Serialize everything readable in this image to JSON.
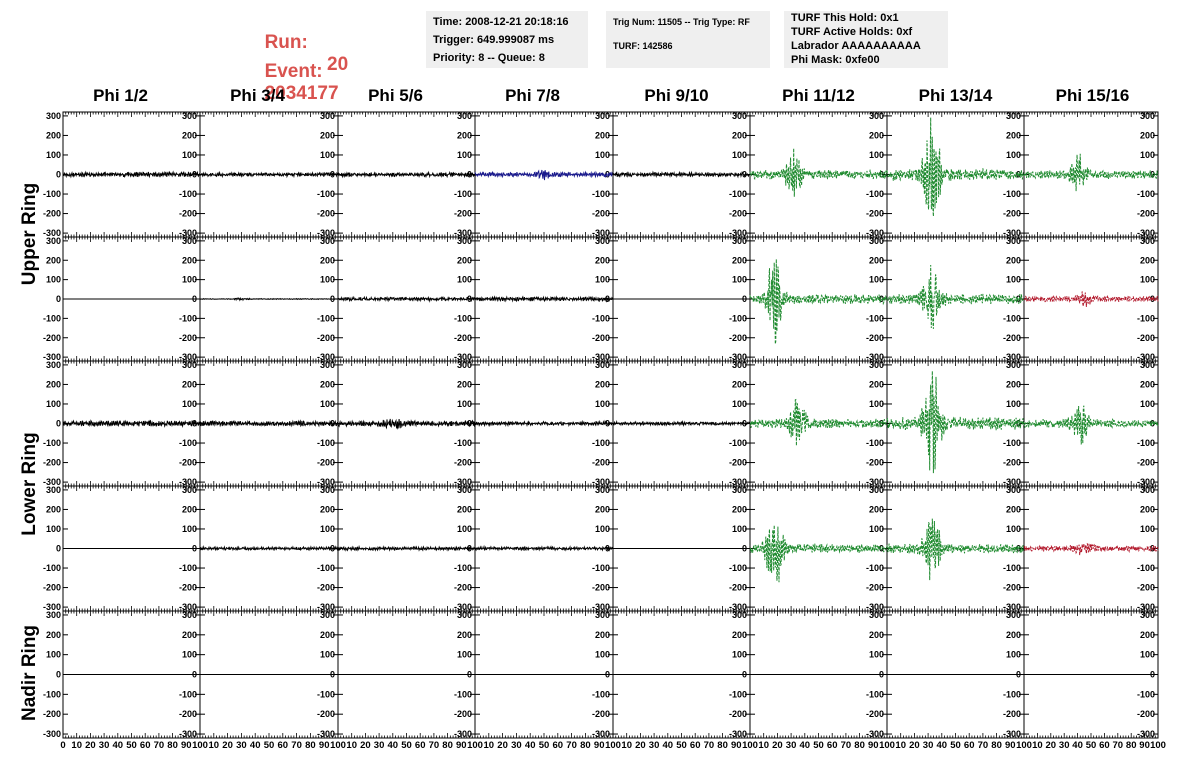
{
  "header": {
    "run_label": "Run:",
    "run_value": "20",
    "event_label": "Event:",
    "event_value": "2034177",
    "time": "Time: 2008-12-21 20:18:16",
    "trigger": "Trigger: 649.999087 ms",
    "priority": "Priority: 8 -- Queue: 8",
    "trig_num": "Trig Num: 11505 -- Trig Type: RF",
    "turf": "TURF: 142586",
    "turf_this_hold": "TURF This Hold: 0x1",
    "turf_active_holds": "TURF Active Holds: 0xf",
    "labrador": "Labrador AAAAAAAAAA",
    "phi_mask": "Phi Mask: 0xfe00"
  },
  "columns": [
    "Phi 1/2",
    "Phi 3/4",
    "Phi 5/6",
    "Phi 7/8",
    "Phi 9/10",
    "Phi 11/12",
    "Phi 13/14",
    "Phi 15/16"
  ],
  "rings": [
    "Upper Ring",
    "Lower Ring",
    "Nadir Ring"
  ],
  "colors": {
    "normal": "#000000",
    "blue": "#1a1a8c",
    "green": "#1e8a2e",
    "red": "#b2182b"
  },
  "chart_data": {
    "type": "line",
    "xlim": [
      0,
      100
    ],
    "ylim": [
      -320,
      320
    ],
    "yticks": [
      -300,
      -200,
      -100,
      0,
      100,
      200,
      300
    ],
    "xticks": [
      0,
      10,
      20,
      30,
      40,
      50,
      60,
      70,
      80,
      90,
      100
    ],
    "xtick_labels": [
      "0",
      "10",
      "20",
      "30",
      "40",
      "50",
      "60",
      "70",
      "80",
      "90",
      "100"
    ],
    "row_rings": [
      "Upper Ring",
      "Upper Ring",
      "Lower Ring",
      "Lower Ring",
      "Nadir Ring"
    ],
    "panels": [
      [
        {
          "color": "normal",
          "amp": 12,
          "burst": 0,
          "center": 0,
          "dashed": false
        },
        {
          "color": "normal",
          "amp": 9,
          "burst": 0,
          "center": 0,
          "dashed": false
        },
        {
          "color": "normal",
          "amp": 10,
          "burst": 0,
          "center": 0,
          "dashed": false
        },
        {
          "color": "blue",
          "amp": 11,
          "burst": 18,
          "center": 50,
          "dashed": false
        },
        {
          "color": "normal",
          "amp": 10,
          "burst": 0,
          "center": 0,
          "dashed": false
        },
        {
          "color": "green",
          "amp": 22,
          "burst": 110,
          "center": 32,
          "dashed": true
        },
        {
          "color": "green",
          "amp": 28,
          "burst": 290,
          "center": 33,
          "dashed": true
        },
        {
          "color": "green",
          "amp": 20,
          "burst": 95,
          "center": 40,
          "dashed": true
        }
      ],
      [
        {
          "color": "normal",
          "amp": 0,
          "burst": 0,
          "center": 0,
          "dashed": false
        },
        {
          "color": "normal",
          "amp": 2,
          "burst": 4,
          "center": 30,
          "dashed": false
        },
        {
          "color": "normal",
          "amp": 9,
          "burst": 0,
          "center": 0,
          "dashed": false
        },
        {
          "color": "normal",
          "amp": 10,
          "burst": 0,
          "center": 0,
          "dashed": false
        },
        {
          "color": "normal",
          "amp": 0,
          "burst": 0,
          "center": 0,
          "dashed": false
        },
        {
          "color": "green",
          "amp": 22,
          "burst": 190,
          "center": 18,
          "dashed": true
        },
        {
          "color": "green",
          "amp": 24,
          "burst": 155,
          "center": 33,
          "dashed": true
        },
        {
          "color": "red",
          "amp": 14,
          "burst": 25,
          "center": 45,
          "dashed": true
        }
      ],
      [
        {
          "color": "normal",
          "amp": 13,
          "burst": 0,
          "center": 0,
          "dashed": false
        },
        {
          "color": "normal",
          "amp": 12,
          "burst": 0,
          "center": 0,
          "dashed": false
        },
        {
          "color": "normal",
          "amp": 13,
          "burst": 20,
          "center": 40,
          "dashed": false
        },
        {
          "color": "normal",
          "amp": 9,
          "burst": 0,
          "center": 0,
          "dashed": false
        },
        {
          "color": "normal",
          "amp": 8,
          "burst": 0,
          "center": 0,
          "dashed": false
        },
        {
          "color": "green",
          "amp": 22,
          "burst": 100,
          "center": 35,
          "dashed": true
        },
        {
          "color": "green",
          "amp": 30,
          "burst": 280,
          "center": 33,
          "dashed": true
        },
        {
          "color": "green",
          "amp": 20,
          "burst": 90,
          "center": 42,
          "dashed": true
        }
      ],
      [
        {
          "color": "normal",
          "amp": 0,
          "burst": 0,
          "center": 0,
          "dashed": false
        },
        {
          "color": "normal",
          "amp": 7,
          "burst": 0,
          "center": 0,
          "dashed": false
        },
        {
          "color": "normal",
          "amp": 8,
          "burst": 0,
          "center": 0,
          "dashed": false
        },
        {
          "color": "normal",
          "amp": 8,
          "burst": 0,
          "center": 0,
          "dashed": false
        },
        {
          "color": "normal",
          "amp": 0,
          "burst": 0,
          "center": 0,
          "dashed": false
        },
        {
          "color": "green",
          "amp": 22,
          "burst": 190,
          "center": 18,
          "dashed": true
        },
        {
          "color": "green",
          "amp": 22,
          "burst": 150,
          "center": 33,
          "dashed": true
        },
        {
          "color": "red",
          "amp": 14,
          "burst": 25,
          "center": 45,
          "dashed": true
        }
      ],
      [
        {
          "color": "normal",
          "amp": 0,
          "burst": 0,
          "center": 0,
          "dashed": false
        },
        {
          "color": "normal",
          "amp": 0,
          "burst": 0,
          "center": 0,
          "dashed": false
        },
        {
          "color": "normal",
          "amp": 0,
          "burst": 0,
          "center": 0,
          "dashed": false
        },
        {
          "color": "normal",
          "amp": 0,
          "burst": 0,
          "center": 0,
          "dashed": false
        },
        {
          "color": "normal",
          "amp": 0,
          "burst": 0,
          "center": 0,
          "dashed": false
        },
        {
          "color": "normal",
          "amp": 0,
          "burst": 0,
          "center": 0,
          "dashed": false
        },
        {
          "color": "normal",
          "amp": 0,
          "burst": 0,
          "center": 0,
          "dashed": false
        },
        {
          "color": "normal",
          "amp": 0,
          "burst": 0,
          "center": 0,
          "dashed": false
        }
      ]
    ]
  }
}
